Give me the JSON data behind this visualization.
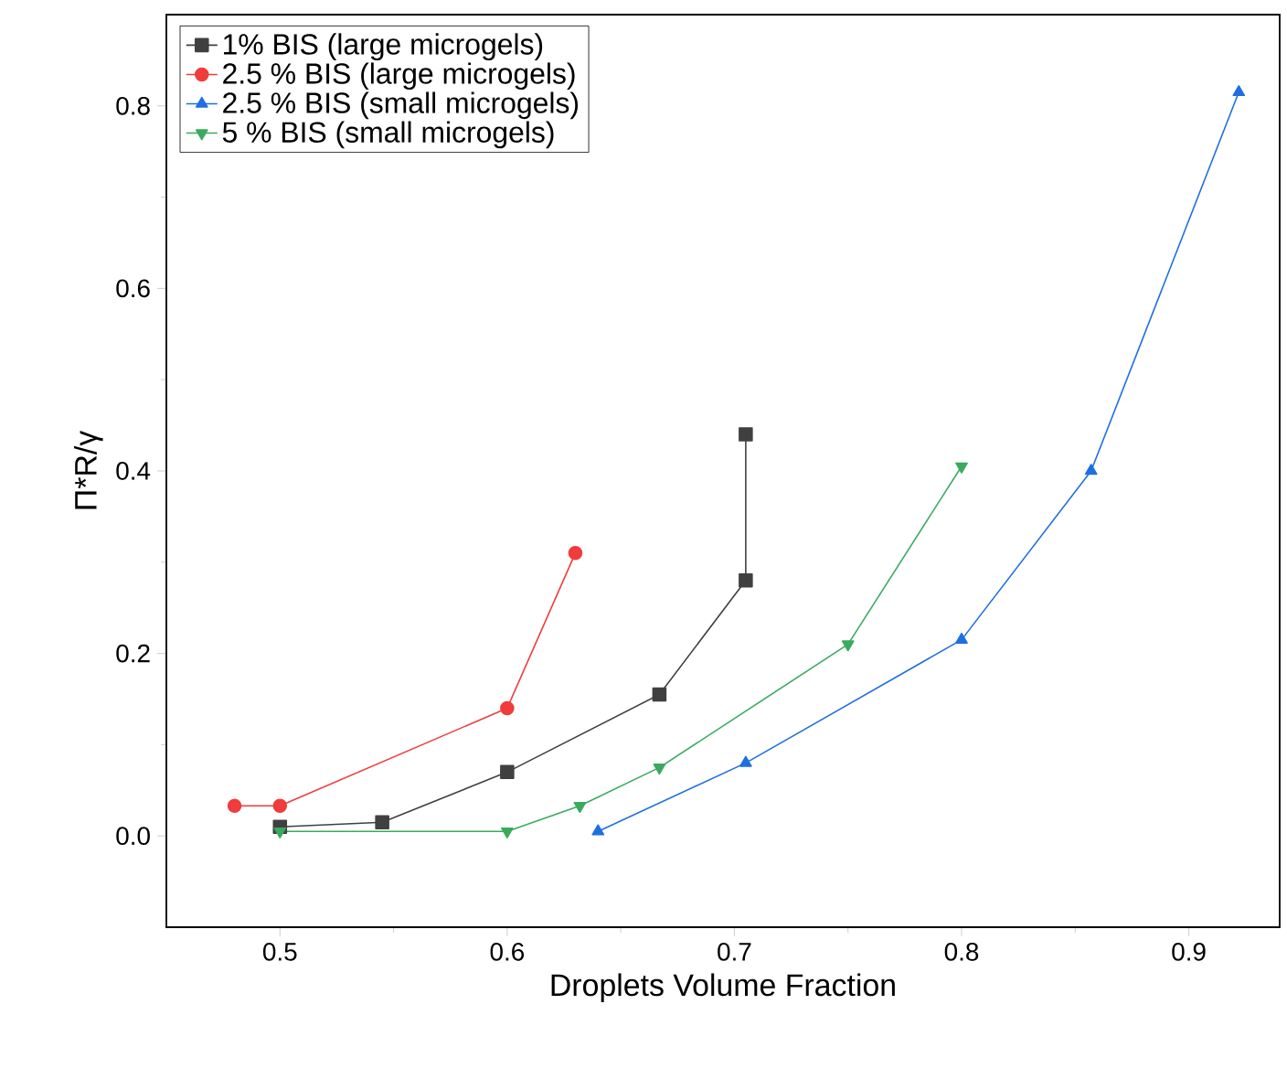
{
  "chart_data": {
    "type": "line",
    "xlabel": "Droplets Volume Fraction",
    "ylabel": "Π*R/γ",
    "xlim": [
      0.45,
      0.94
    ],
    "ylim": [
      -0.1,
      0.9
    ],
    "xticks": [
      0.5,
      0.6,
      0.7,
      0.8,
      0.9
    ],
    "yticks": [
      {
        "value": 0,
        "label": "0.0"
      },
      {
        "value": 0.2,
        "label": "0.2"
      },
      {
        "value": 0.4,
        "label": "0.4"
      },
      {
        "value": 0.6,
        "label": "0.6"
      },
      {
        "value": 0.8,
        "label": "0.8"
      }
    ],
    "legend": "top left",
    "series": [
      {
        "name": "1% BIS (large microgels)",
        "color": "#404040",
        "marker": "square",
        "x": [
          0.5,
          0.545,
          0.6,
          0.667,
          0.705,
          0.705
        ],
        "values": [
          0.01,
          0.015,
          0.07,
          0.155,
          0.28,
          0.44
        ]
      },
      {
        "name": "2.5 % BIS (large microgels)",
        "color": "#f03c3c",
        "marker": "circle",
        "x": [
          0.48,
          0.5,
          0.6,
          0.63
        ],
        "values": [
          0.033,
          0.033,
          0.14,
          0.31
        ]
      },
      {
        "name": "2.5 % BIS (small microgels)",
        "color": "#1f6fe0",
        "marker": "triangle",
        "x": [
          0.64,
          0.705,
          0.8,
          0.857,
          0.922
        ],
        "values": [
          0.005,
          0.08,
          0.215,
          0.4,
          0.815
        ]
      },
      {
        "name": "5 % BIS (small microgels)",
        "color": "#3aaa5e",
        "marker": "triangle-down",
        "x": [
          0.5,
          0.6,
          0.632,
          0.667,
          0.75,
          0.8
        ],
        "values": [
          0.005,
          0.005,
          0.033,
          0.075,
          0.21,
          0.405
        ]
      }
    ]
  }
}
